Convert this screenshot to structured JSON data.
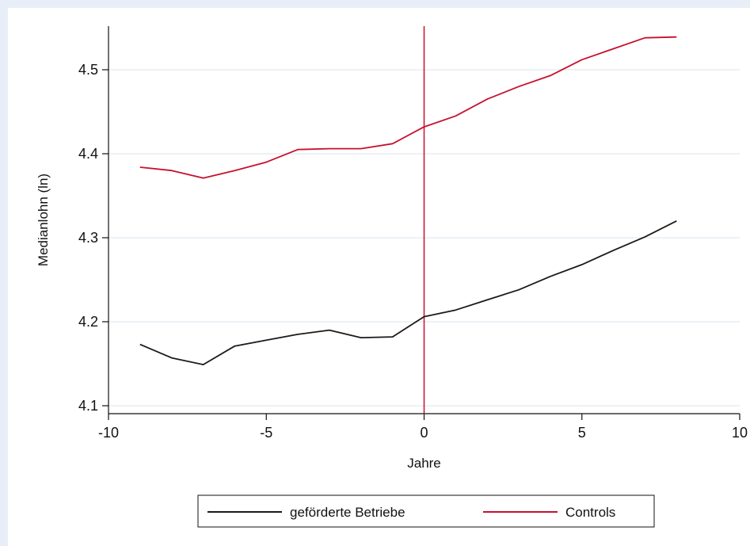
{
  "chart_data": {
    "type": "line",
    "xlabel": "Jahre",
    "ylabel": "Medianlohn (ln)",
    "xlim": [
      -10,
      10
    ],
    "ylim": [
      4.1,
      4.55
    ],
    "x_ticks": [
      -10,
      -5,
      0,
      5,
      10
    ],
    "x_tick_labels": [
      "-10",
      "-5",
      "0",
      "5",
      "10"
    ],
    "y_ticks": [
      4.1,
      4.2,
      4.3,
      4.4,
      4.5
    ],
    "y_tick_labels": [
      "4.1",
      "4.2",
      "4.3",
      "4.4",
      "4.5"
    ],
    "grid": true,
    "vertical_line": {
      "x": 0,
      "color": "#c8102e"
    },
    "legend_position": "bottom",
    "series": [
      {
        "name": "geförderte Betriebe",
        "color": "#1a1a1a",
        "x": [
          -9,
          -8,
          -7,
          -6,
          -5,
          -4,
          -3,
          -2,
          -1,
          0,
          1,
          2,
          3,
          4,
          5,
          6,
          7,
          8
        ],
        "values": [
          4.173,
          4.157,
          4.149,
          4.171,
          4.178,
          4.185,
          4.19,
          4.181,
          4.182,
          4.206,
          4.214,
          4.226,
          4.238,
          4.254,
          4.268,
          4.285,
          4.301,
          4.32
        ]
      },
      {
        "name": "Controls",
        "color": "#c8102e",
        "x": [
          -9,
          -8,
          -7,
          -6,
          -5,
          -4,
          -3,
          -2,
          -1,
          0,
          1,
          2,
          3,
          4,
          5,
          6,
          7,
          8
        ],
        "values": [
          4.384,
          4.38,
          4.371,
          4.38,
          4.39,
          4.405,
          4.406,
          4.406,
          4.412,
          4.432,
          4.445,
          4.465,
          4.48,
          4.493,
          4.512,
          4.525,
          4.538,
          4.539
        ]
      }
    ]
  }
}
